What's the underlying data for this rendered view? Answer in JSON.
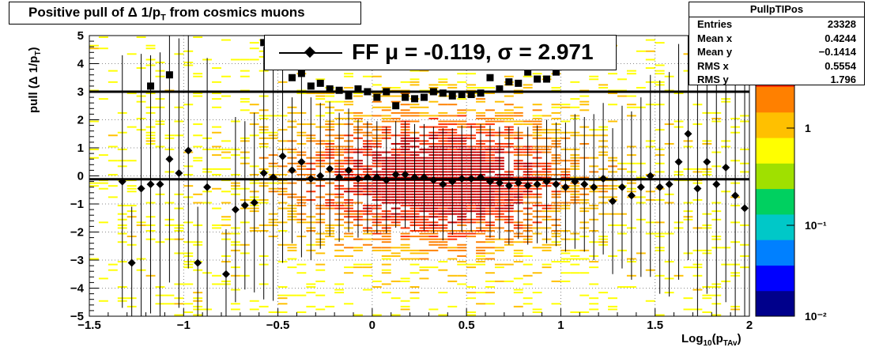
{
  "title": "Positive pull of Δ 1/p",
  "title_sub": "T",
  "title_suffix": " from cosmics muons",
  "stats": {
    "name": "PullpTIPos",
    "rows": [
      {
        "key": "Entries",
        "value": "23328"
      },
      {
        "key": "Mean x",
        "value": "0.4244"
      },
      {
        "key": "Mean y",
        "value": "−0.1414"
      },
      {
        "key": "RMS x",
        "value": "0.5554"
      },
      {
        "key": "RMS y",
        "value": "1.796"
      }
    ]
  },
  "legend": {
    "text": "FF μ = -0.119, σ =   2.971"
  },
  "axis_titles": {
    "y_main": "pull (Δ 1/p",
    "y_sub": "T",
    "y_close": ")",
    "x_main": "Log",
    "x_sub1": "10",
    "x_mid": "(p",
    "x_sub2": "TAv",
    "x_close": ")"
  },
  "chart_data": {
    "type": "heatmap",
    "xlim": [
      -1.5,
      2
    ],
    "ylim": [
      -5,
      5
    ],
    "x_ticks": [
      "−1.5",
      "−1",
      "−0.5",
      "0",
      "0.5",
      "1",
      "1.5",
      "2"
    ],
    "y_ticks": [
      "5",
      "4",
      "3",
      "2",
      "1",
      "0",
      "−1",
      "−2",
      "−3",
      "−4",
      "−5"
    ],
    "grid": true,
    "z_scale": "log",
    "z_ticks": [
      "1",
      "10⁻¹",
      "10⁻²"
    ],
    "palette": [
      "#00008b",
      "#0000ff",
      "#0080ff",
      "#00c8c8",
      "#00d060",
      "#a0e000",
      "#ffff00",
      "#ffc000",
      "#ff8000",
      "#ff3000",
      "#c80000"
    ],
    "hlines": [
      3,
      -0.119
    ],
    "series": [
      {
        "marker": "diamond",
        "x": [
          -1.325,
          -1.275,
          -1.225,
          -1.175,
          -1.125,
          -1.075,
          -1.025,
          -0.975,
          -0.925,
          -0.875,
          -0.775,
          -0.725,
          -0.675,
          -0.625,
          -0.575,
          -0.525,
          -0.475,
          -0.425,
          -0.375,
          -0.325,
          -0.275,
          -0.225,
          -0.175,
          -0.125,
          -0.075,
          -0.025,
          0.025,
          0.075,
          0.125,
          0.175,
          0.225,
          0.275,
          0.325,
          0.375,
          0.425,
          0.475,
          0.525,
          0.575,
          0.625,
          0.675,
          0.725,
          0.775,
          0.825,
          0.875,
          0.925,
          0.975,
          1.025,
          1.075,
          1.125,
          1.175,
          1.225,
          1.275,
          1.325,
          1.375,
          1.425,
          1.475,
          1.525,
          1.575,
          1.625,
          1.675,
          1.725,
          1.775,
          1.825,
          1.875,
          1.925,
          1.975
        ],
        "y": [
          -0.2,
          -3.1,
          -0.45,
          -0.3,
          -0.3,
          0.6,
          0.1,
          0.9,
          -3.1,
          -0.4,
          -3.5,
          -1.2,
          -1.05,
          -0.95,
          0.1,
          -0.05,
          0.7,
          0.2,
          0.5,
          -0.1,
          0.0,
          0.25,
          -0.05,
          0.2,
          -0.1,
          -0.05,
          -0.05,
          -0.15,
          0.05,
          0.05,
          -0.05,
          -0.05,
          -0.15,
          -0.3,
          -0.2,
          -0.1,
          -0.1,
          -0.05,
          -0.2,
          -0.25,
          -0.35,
          -0.25,
          -0.35,
          -0.3,
          -0.2,
          -0.3,
          -0.4,
          -0.2,
          -0.3,
          -0.4,
          -0.1,
          -0.9,
          -0.4,
          -0.7,
          -0.4,
          0.0,
          -0.4,
          -0.3,
          0.5,
          1.5,
          -0.45,
          0.5,
          -0.3,
          0.3,
          -0.7,
          -1.15
        ],
        "yerr": [
          4.5,
          2.0,
          4.8,
          4.6,
          4.7,
          4.4,
          4.8,
          4.2,
          2.0,
          4.6,
          1.6,
          3.3,
          3.0,
          3.2,
          4.5,
          4.4,
          3.8,
          2.6,
          3.4,
          2.9,
          2.6,
          2.4,
          2.3,
          2.2,
          2.1,
          2.0,
          2.0,
          1.9,
          1.9,
          1.9,
          1.9,
          1.9,
          1.9,
          2.0,
          1.9,
          1.9,
          1.9,
          1.9,
          2.0,
          2.0,
          2.1,
          2.0,
          2.1,
          2.1,
          2.2,
          2.2,
          2.3,
          2.4,
          2.4,
          2.6,
          2.7,
          2.6,
          2.9,
          3.0,
          3.2,
          3.6,
          3.8,
          4.0,
          4.2,
          4.5,
          4.8,
          4.7,
          4.9,
          4.8,
          4.9,
          4.6
        ]
      },
      {
        "marker": "square",
        "x": [
          -1.175,
          -1.075,
          -0.575,
          -0.425,
          -0.375,
          -0.325,
          -0.275,
          -0.225,
          -0.175,
          -0.125,
          -0.075,
          -0.025,
          0.025,
          0.075,
          0.125,
          0.175,
          0.225,
          0.275,
          0.325,
          0.375,
          0.425,
          0.475,
          0.525,
          0.575,
          0.625,
          0.675,
          0.725,
          0.775,
          0.825,
          0.875,
          0.925,
          0.975
        ],
        "y": [
          3.2,
          3.6,
          4.75,
          3.5,
          3.65,
          3.2,
          3.3,
          3.1,
          3.05,
          2.85,
          3.1,
          3.0,
          2.8,
          3.0,
          2.5,
          2.8,
          2.75,
          2.8,
          3.0,
          2.95,
          2.85,
          2.9,
          2.9,
          2.95,
          3.5,
          3.1,
          3.35,
          3.3,
          3.7,
          3.45,
          3.45,
          3.7
        ]
      }
    ]
  }
}
